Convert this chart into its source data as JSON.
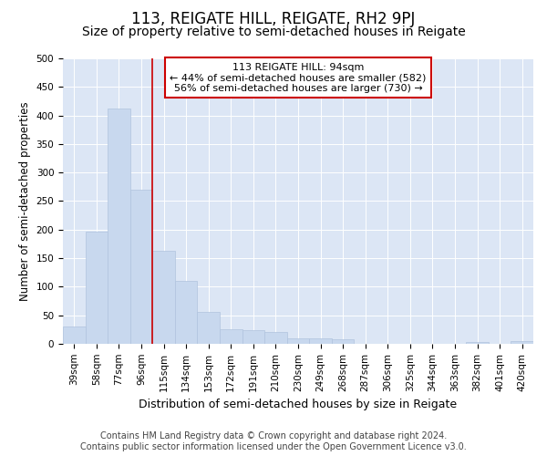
{
  "title": "113, REIGATE HILL, REIGATE, RH2 9PJ",
  "subtitle": "Size of property relative to semi-detached houses in Reigate",
  "xlabel": "Distribution of semi-detached houses by size in Reigate",
  "ylabel": "Number of semi-detached properties",
  "footer_line1": "Contains HM Land Registry data © Crown copyright and database right 2024.",
  "footer_line2": "Contains public sector information licensed under the Open Government Licence v3.0.",
  "categories": [
    "39sqm",
    "58sqm",
    "77sqm",
    "96sqm",
    "115sqm",
    "134sqm",
    "153sqm",
    "172sqm",
    "191sqm",
    "210sqm",
    "230sqm",
    "249sqm",
    "268sqm",
    "287sqm",
    "306sqm",
    "325sqm",
    "344sqm",
    "363sqm",
    "382sqm",
    "401sqm",
    "420sqm"
  ],
  "values": [
    30,
    196,
    412,
    270,
    163,
    110,
    55,
    25,
    24,
    20,
    10,
    10,
    7,
    0,
    0,
    0,
    0,
    0,
    3,
    0,
    5
  ],
  "bar_color": "#c8d8ee",
  "bar_edge_color": "#b0c4de",
  "vline_color": "#cc0000",
  "vline_x_index": 3,
  "annotation_line1": "113 REIGATE HILL: 94sqm",
  "annotation_line2": "← 44% of semi-detached houses are smaller (582)",
  "annotation_line3": "56% of semi-detached houses are larger (730) →",
  "annotation_box_facecolor": "#ffffff",
  "annotation_box_edgecolor": "#cc0000",
  "ylim": [
    0,
    500
  ],
  "yticks": [
    0,
    50,
    100,
    150,
    200,
    250,
    300,
    350,
    400,
    450,
    500
  ],
  "plot_bg_color": "#dce6f5",
  "title_fontsize": 12,
  "subtitle_fontsize": 10,
  "xlabel_fontsize": 9,
  "ylabel_fontsize": 8.5,
  "tick_fontsize": 7.5,
  "annotation_fontsize": 8,
  "footer_fontsize": 7
}
